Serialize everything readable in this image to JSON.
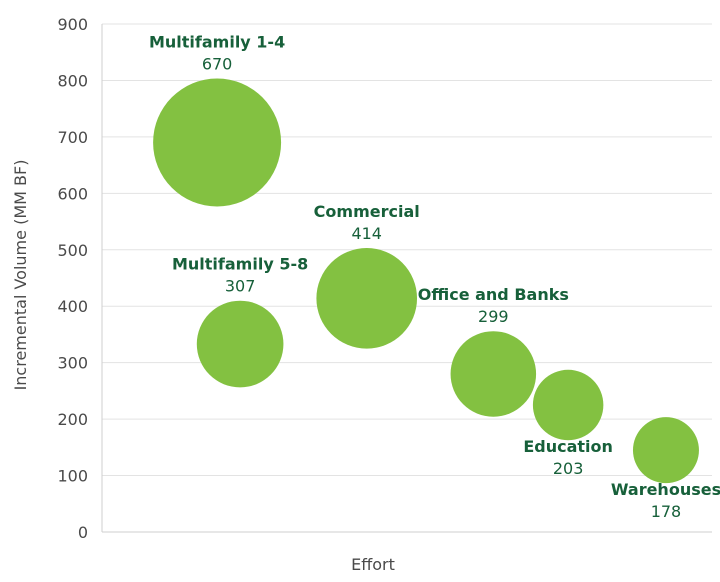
{
  "chart_data": {
    "type": "scatter",
    "title": "",
    "xlabel": "Effort",
    "ylabel": "Incremental Volume (MM BF)",
    "ylim": [
      0,
      900
    ],
    "yticks": [
      "0",
      "100",
      "200",
      "300",
      "400",
      "500",
      "600",
      "700",
      "800",
      "900"
    ],
    "grid": true,
    "bubble_color": "#83c141",
    "label_color": "#17603a",
    "series": [
      {
        "name": "Multifamily 1-4",
        "value_label": "670",
        "x": 1.0,
        "y": 690,
        "size": 670
      },
      {
        "name": "Multifamily 5-8",
        "value_label": "307",
        "x": 1.2,
        "y": 333,
        "size": 307
      },
      {
        "name": "Commercial",
        "value_label": "414",
        "x": 2.3,
        "y": 414,
        "size": 414
      },
      {
        "name": "Office and Banks",
        "value_label": "299",
        "x": 3.4,
        "y": 280,
        "size": 299
      },
      {
        "name": "Education",
        "value_label": "203",
        "x": 4.05,
        "y": 225,
        "size": 203
      },
      {
        "name": "Warehouses",
        "value_label": "178",
        "x": 4.9,
        "y": 145,
        "size": 178
      }
    ]
  }
}
